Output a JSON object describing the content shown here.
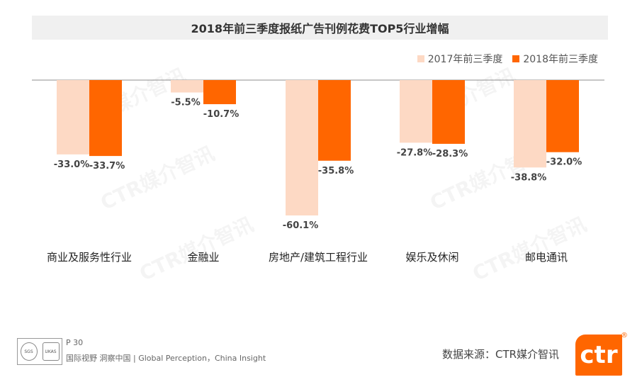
{
  "title": "2018年前三季度报纸广告刊例花费TOP5行业增幅",
  "legend": {
    "s2017": "2017年前三季度",
    "s2018": "2018年前三季度"
  },
  "colors": {
    "s2017": "#fdd9c4",
    "s2018": "#ff6600"
  },
  "chart_data": {
    "type": "bar",
    "title": "2018年前三季度报纸广告刊例花费TOP5行业增幅",
    "categories": [
      "商业及服务性行业",
      "金融业",
      "房地产/建筑工程行业",
      "娱乐及休闲",
      "邮电通讯"
    ],
    "series": [
      {
        "name": "2017年前三季度",
        "values": [
          -33.0,
          -5.5,
          -60.1,
          -27.8,
          -38.8
        ],
        "labels": [
          "-33.0%",
          "-5.5%",
          "-60.1%",
          "-27.8%",
          "-38.8%"
        ]
      },
      {
        "name": "2018年前三季度",
        "values": [
          -33.7,
          -10.7,
          -35.8,
          -28.3,
          -32.0
        ],
        "labels": [
          "-33.7%",
          "-10.7%",
          "-35.8%",
          "-28.3%",
          "-32.0%"
        ]
      }
    ],
    "ylim": [
      -60.1,
      0
    ],
    "legend_position": "top-right",
    "grid": false
  },
  "watermark": "CTR媒介智讯",
  "footer": {
    "page": "P 30",
    "tagline": "国际视野 洞察中国 | Global Perception，China Insight",
    "source": "数据来源：CTR媒介智讯",
    "logo": "ctr",
    "reg_mark": "®",
    "cert1": "SGS",
    "cert2": "UKAS"
  }
}
